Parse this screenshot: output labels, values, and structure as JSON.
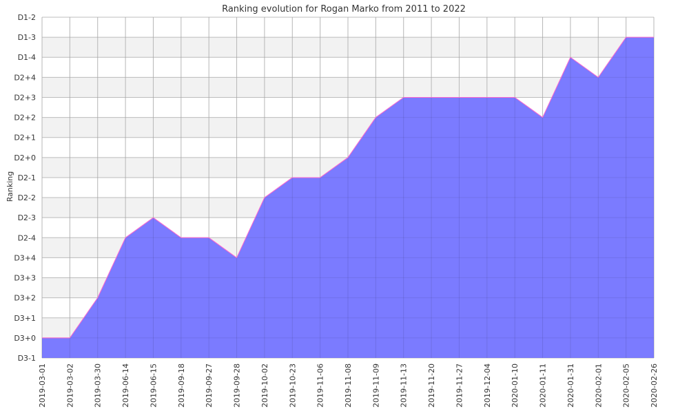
{
  "chart_data": {
    "type": "area",
    "title": "Ranking evolution for Rogan Marko from 2011 to 2022",
    "xlabel": "",
    "ylabel": "Ranking",
    "y_categories": [
      "D3-1",
      "D3+0",
      "D3+1",
      "D3+2",
      "D3+3",
      "D3+4",
      "D2-4",
      "D2-3",
      "D2-2",
      "D2-1",
      "D2+0",
      "D2+1",
      "D2+2",
      "D2+3",
      "D2+4",
      "D1-4",
      "D1-3",
      "D1-2"
    ],
    "x": [
      "2019-03-01",
      "2019-03-02",
      "2019-03-30",
      "2019-06-14",
      "2019-06-15",
      "2019-09-18",
      "2019-09-27",
      "2019-09-28",
      "2019-10-02",
      "2019-10-23",
      "2019-11-06",
      "2019-11-08",
      "2019-11-09",
      "2019-11-13",
      "2019-11-20",
      "2019-11-27",
      "2019-12-04",
      "2020-01-10",
      "2020-01-11",
      "2020-01-31",
      "2020-02-01",
      "2020-02-05",
      "2020-02-26"
    ],
    "series": [
      {
        "values": [
          "D3+0",
          "D3+0",
          "D3+2",
          "D2-4",
          "D2-3",
          "D2-4",
          "D2-4",
          "D3+4",
          "D2-2",
          "D2-1",
          "D2-1",
          "D2+0",
          "D2+2",
          "D2+3",
          "D2+3",
          "D2+3",
          "D2+3",
          "D2+3",
          "D2+2",
          "D1-4",
          "D2+4",
          "D1-3",
          "D1-3"
        ]
      }
    ],
    "grid": true,
    "colors": {
      "fill": "#7b7bff",
      "line": "#ff66cc",
      "band": "#f2f2f2",
      "grid": "#cccccc"
    }
  }
}
